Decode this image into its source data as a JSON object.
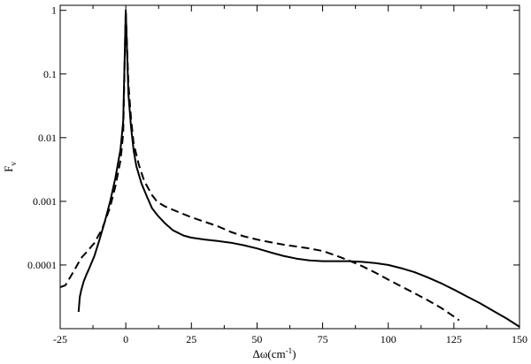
{
  "chart_data": {
    "type": "line",
    "xlabel": "Δω(cm",
    "xlabel_sup": "-1",
    "xlabel_tail": ")",
    "ylabel": "F",
    "ylabel_sub": "v",
    "xlim": [
      -25,
      150
    ],
    "ylim": [
      1e-05,
      1.2
    ],
    "yscale": "log",
    "grid": false,
    "x_ticks": [
      -25,
      0,
      25,
      50,
      75,
      100,
      125,
      150
    ],
    "x_tick_labels": [
      "-25",
      "0",
      "25",
      "50",
      "75",
      "100",
      "125",
      "150"
    ],
    "y_ticks": [
      0.0001,
      0.001,
      0.01,
      0.1,
      1
    ],
    "y_tick_labels": [
      "0.0001",
      "0.001",
      "0.01",
      "0.1",
      "1"
    ],
    "series": [
      {
        "style": "solid",
        "color": "#000000",
        "x": [
          -18,
          -17.5,
          -17,
          -16,
          -15,
          -14,
          -12,
          -10,
          -8,
          -6,
          -4,
          -2,
          -1,
          0,
          1,
          2,
          3,
          4,
          6,
          8,
          10,
          12,
          15,
          18,
          22,
          25,
          30,
          35,
          40,
          45,
          50,
          55,
          60,
          65,
          70,
          75,
          80,
          85,
          90,
          95,
          100,
          105,
          110,
          115,
          120,
          125,
          130,
          135,
          140,
          145,
          150
        ],
        "y": [
          1.83e-05,
          3.16e-05,
          3.98e-05,
          5.6e-05,
          7.1e-05,
          8.7e-05,
          0.000138,
          0.000251,
          0.00048,
          0.00097,
          0.0023,
          0.0066,
          0.018,
          1,
          0.048,
          0.0145,
          0.0063,
          0.0036,
          0.0019,
          0.0012,
          0.00078,
          0.00061,
          0.00045,
          0.00035,
          0.00029,
          0.000269,
          0.000251,
          0.000238,
          0.000224,
          0.000204,
          0.000182,
          0.000158,
          0.000139,
          0.000126,
          0.000118,
          0.000115,
          0.000115,
          0.000115,
          0.000112,
          0.000107,
          0.0001,
          8.9e-05,
          7.7e-05,
          6.4e-05,
          5.2e-05,
          4.1e-05,
          3.2e-05,
          2.5e-05,
          1.9e-05,
          1.45e-05,
          1.07e-05
        ]
      },
      {
        "style": "dashed",
        "color": "#000000",
        "x": [
          -25,
          -23,
          -21,
          -19,
          -17,
          -15,
          -12,
          -9,
          -6,
          -4,
          -2,
          -1,
          0,
          1,
          2,
          3,
          5,
          7,
          10,
          12,
          15,
          20,
          25,
          30,
          35,
          40,
          45,
          50,
          55,
          60,
          65,
          70,
          75,
          80,
          85,
          90,
          95,
          100,
          105,
          110,
          115,
          120,
          125,
          127
        ],
        "y": [
          4.47e-05,
          4.8e-05,
          6.6e-05,
          9.2e-05,
          0.000129,
          0.000158,
          0.000221,
          0.00037,
          0.0008,
          0.0017,
          0.0044,
          0.0117,
          1,
          0.071,
          0.0195,
          0.0081,
          0.0037,
          0.0021,
          0.00125,
          0.00098,
          0.00083,
          0.00068,
          0.000562,
          0.000478,
          0.000407,
          0.000331,
          0.000282,
          0.000251,
          0.000228,
          0.000209,
          0.000195,
          0.000182,
          0.000166,
          0.000141,
          0.000118,
          9.6e-05,
          7.6e-05,
          5.9e-05,
          4.6e-05,
          3.6e-05,
          2.8e-05,
          2.14e-05,
          1.55e-05,
          1.35e-05
        ]
      }
    ]
  }
}
